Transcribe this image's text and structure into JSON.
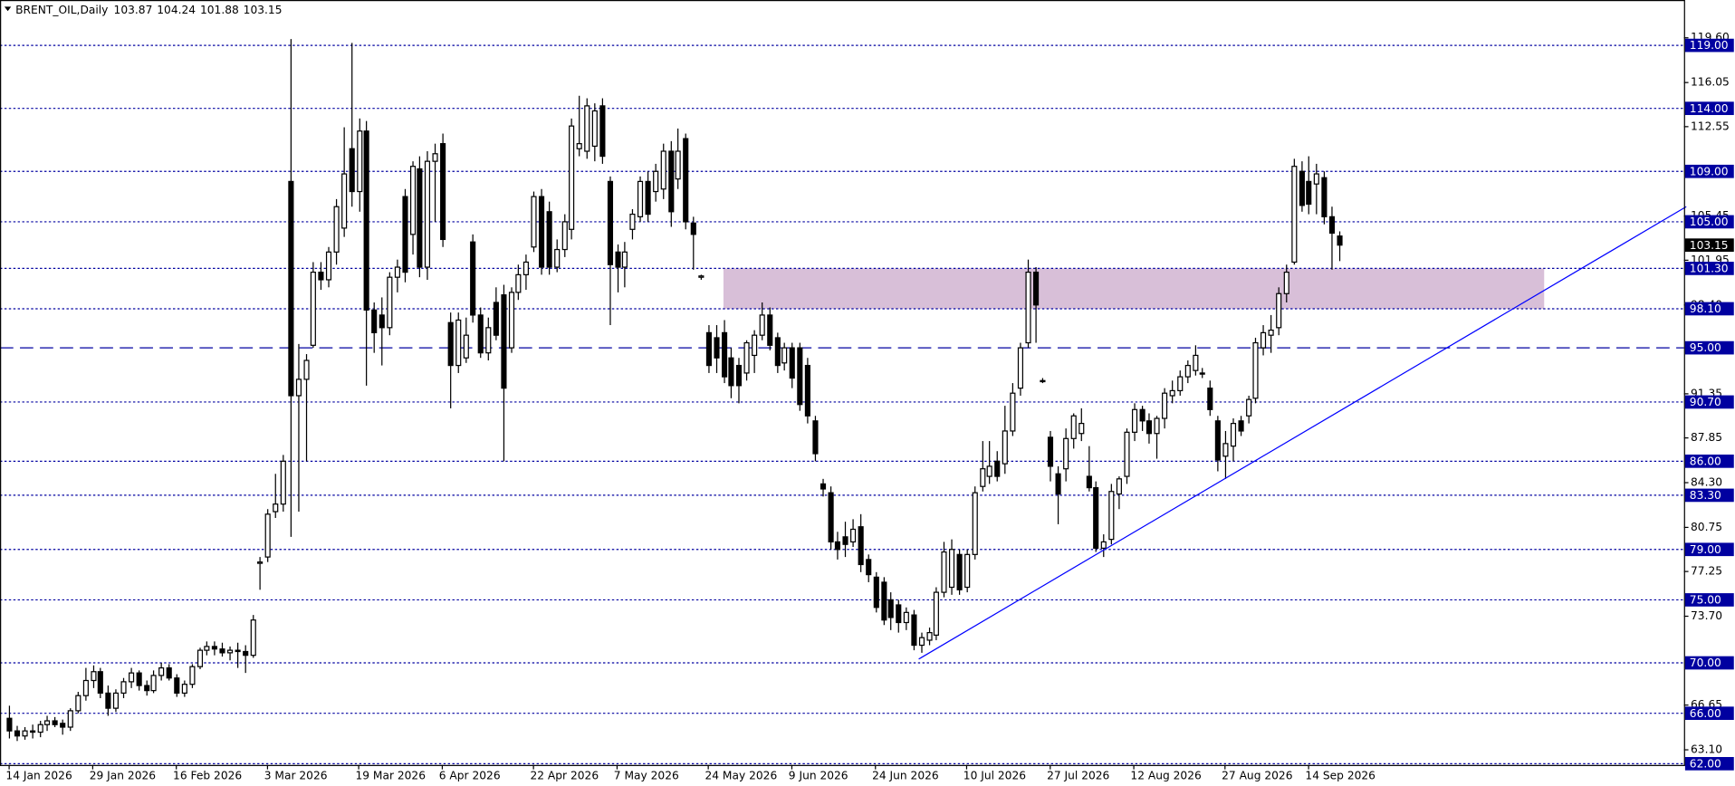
{
  "chart_data": {
    "type": "candlestick",
    "title": "BRENT_OIL,Daily",
    "categories": [
      "14 Jan 2026",
      null,
      null,
      null,
      null,
      null,
      null,
      null,
      null,
      null,
      null,
      "29 Jan 2026",
      null,
      null,
      null,
      null,
      null,
      null,
      null,
      null,
      null,
      null,
      "16 Feb 2026",
      null,
      null,
      null,
      null,
      null,
      null,
      null,
      null,
      null,
      null,
      null,
      "3 Mar 2026",
      null,
      null,
      null,
      null,
      null,
      null,
      null,
      null,
      null,
      null,
      null,
      "19 Mar 2026",
      null,
      null,
      null,
      null,
      null,
      null,
      null,
      null,
      null,
      null,
      "6 Apr 2026",
      null,
      null,
      null,
      null,
      null,
      null,
      null,
      null,
      null,
      null,
      null,
      "22 Apr 2026",
      null,
      null,
      null,
      null,
      null,
      null,
      null,
      null,
      null,
      null,
      "7 May 2026",
      null,
      null,
      null,
      null,
      null,
      null,
      null,
      null,
      null,
      null,
      null,
      "24 May 2026",
      null,
      null,
      null,
      null,
      null,
      null,
      null,
      null,
      null,
      null,
      "9 Jun 2026",
      null,
      null,
      null,
      null,
      null,
      null,
      null,
      null,
      null,
      null,
      "24 Jun 2026",
      null,
      null,
      null,
      null,
      null,
      null,
      null,
      null,
      null,
      null,
      null,
      "10 Jul 2026",
      null,
      null,
      null,
      null,
      null,
      null,
      null,
      null,
      null,
      null,
      "27 Jul 2026",
      null,
      null,
      null,
      null,
      null,
      null,
      null,
      null,
      null,
      null,
      "12 Aug 2026",
      null,
      null,
      null,
      null,
      null,
      null,
      null,
      null,
      null,
      null,
      null,
      "27 Aug 2026",
      null,
      null,
      null,
      null,
      null,
      null,
      null,
      null,
      null,
      null,
      "14 Sep 2026",
      null,
      null,
      null,
      null
    ],
    "ohlc": [
      [
        65.6,
        66.6,
        64.0,
        64.6
      ],
      [
        64.6,
        65.0,
        63.8,
        64.2
      ],
      [
        64.2,
        64.9,
        63.9,
        64.6
      ],
      [
        64.6,
        65.1,
        64.0,
        64.5
      ],
      [
        64.5,
        65.4,
        64.1,
        65.1
      ],
      [
        65.1,
        65.8,
        64.6,
        65.4
      ],
      [
        65.4,
        65.7,
        64.9,
        65.1
      ],
      [
        65.2,
        65.5,
        64.3,
        64.9
      ],
      [
        64.9,
        66.4,
        64.6,
        66.2
      ],
      [
        66.2,
        67.7,
        66.0,
        67.4
      ],
      [
        67.4,
        69.6,
        67.0,
        68.6
      ],
      [
        68.6,
        69.8,
        68.0,
        69.3
      ],
      [
        69.3,
        69.6,
        67.2,
        67.6
      ],
      [
        67.6,
        68.2,
        65.8,
        66.4
      ],
      [
        66.4,
        67.9,
        66.1,
        67.6
      ],
      [
        67.6,
        68.8,
        67.2,
        68.5
      ],
      [
        68.5,
        69.6,
        68.0,
        69.2
      ],
      [
        69.2,
        69.4,
        67.8,
        68.2
      ],
      [
        68.2,
        68.6,
        67.4,
        67.8
      ],
      [
        67.8,
        69.4,
        67.6,
        69.0
      ],
      [
        69.0,
        70.0,
        68.6,
        69.6
      ],
      [
        69.6,
        69.9,
        68.6,
        68.8
      ],
      [
        68.8,
        69.1,
        67.3,
        67.6
      ],
      [
        67.6,
        68.6,
        67.3,
        68.3
      ],
      [
        68.3,
        69.9,
        68.0,
        69.7
      ],
      [
        69.7,
        71.2,
        69.5,
        71.0
      ],
      [
        71.0,
        71.7,
        70.6,
        71.3
      ],
      [
        71.3,
        71.7,
        70.6,
        71.1
      ],
      [
        71.1,
        71.6,
        70.5,
        70.8
      ],
      [
        70.8,
        71.3,
        70.2,
        71.0
      ],
      [
        71.0,
        71.6,
        69.6,
        70.9
      ],
      [
        70.9,
        71.4,
        69.2,
        70.6
      ],
      [
        70.6,
        73.8,
        70.4,
        73.4
      ],
      [
        77.9,
        78.4,
        75.8,
        78.0
      ],
      [
        78.4,
        82.2,
        78.0,
        81.8
      ],
      [
        82.0,
        85.0,
        81.5,
        82.6
      ],
      [
        82.6,
        86.5,
        82.0,
        86.0
      ],
      [
        108.2,
        119.5,
        80.0,
        91.2
      ],
      [
        91.2,
        95.3,
        82.0,
        92.5
      ],
      [
        92.5,
        94.5,
        86.0,
        94.0
      ],
      [
        95.2,
        101.8,
        95.0,
        101.0
      ],
      [
        101.0,
        101.8,
        99.6,
        100.4
      ],
      [
        100.4,
        103.0,
        99.8,
        102.6
      ],
      [
        102.6,
        106.8,
        101.6,
        106.2
      ],
      [
        104.5,
        112.5,
        103.8,
        108.8
      ],
      [
        110.8,
        119.2,
        106.2,
        107.4
      ],
      [
        107.4,
        113.2,
        105.8,
        112.2
      ],
      [
        112.2,
        113.0,
        92.0,
        98.0
      ],
      [
        98.0,
        98.6,
        94.6,
        96.2
      ],
      [
        97.6,
        99.0,
        93.6,
        96.6
      ],
      [
        96.6,
        101.0,
        96.0,
        100.6
      ],
      [
        100.6,
        102.0,
        99.4,
        101.4
      ],
      [
        107.0,
        107.6,
        100.2,
        101.0
      ],
      [
        104.0,
        109.8,
        102.4,
        109.4
      ],
      [
        109.2,
        110.2,
        100.6,
        101.4
      ],
      [
        101.4,
        110.6,
        100.4,
        109.8
      ],
      [
        109.8,
        111.2,
        105.0,
        110.4
      ],
      [
        111.2,
        112.0,
        103.0,
        103.6
      ],
      [
        97.0,
        97.8,
        90.2,
        93.6
      ],
      [
        93.6,
        97.8,
        93.0,
        97.2
      ],
      [
        94.2,
        97.4,
        93.8,
        96.0
      ],
      [
        103.4,
        104.0,
        97.0,
        97.6
      ],
      [
        97.6,
        98.2,
        94.2,
        94.6
      ],
      [
        94.6,
        97.4,
        94.0,
        96.6
      ],
      [
        98.6,
        99.8,
        95.6,
        96.0
      ],
      [
        99.2,
        100.0,
        86.0,
        91.8
      ],
      [
        95.0,
        99.8,
        94.6,
        99.4
      ],
      [
        99.4,
        101.6,
        98.8,
        100.8
      ],
      [
        100.8,
        102.4,
        99.6,
        101.8
      ],
      [
        103.0,
        107.4,
        102.6,
        107.0
      ],
      [
        107.0,
        107.6,
        100.8,
        101.4
      ],
      [
        105.8,
        106.6,
        100.8,
        101.4
      ],
      [
        101.4,
        103.6,
        101.0,
        102.8
      ],
      [
        102.8,
        105.6,
        102.2,
        105.0
      ],
      [
        104.4,
        113.2,
        103.6,
        112.6
      ],
      [
        110.8,
        115.0,
        110.2,
        111.2
      ],
      [
        110.6,
        114.8,
        110.0,
        114.2
      ],
      [
        111.0,
        114.4,
        109.8,
        113.8
      ],
      [
        114.2,
        114.8,
        109.6,
        110.2
      ],
      [
        108.2,
        108.6,
        96.8,
        101.6
      ],
      [
        102.6,
        103.2,
        99.4,
        101.4
      ],
      [
        101.4,
        103.4,
        99.8,
        102.6
      ],
      [
        104.4,
        106.0,
        103.6,
        105.6
      ],
      [
        105.4,
        108.6,
        105.0,
        108.2
      ],
      [
        108.2,
        109.0,
        105.0,
        105.6
      ],
      [
        107.4,
        109.6,
        106.6,
        109.0
      ],
      [
        107.6,
        111.2,
        106.8,
        110.6
      ],
      [
        110.6,
        111.4,
        104.6,
        105.8
      ],
      [
        108.4,
        112.4,
        107.6,
        110.6
      ],
      [
        111.6,
        112.0,
        104.4,
        105.0
      ],
      [
        104.9,
        105.4,
        101.2,
        104.0
      ],
      [
        100.6,
        100.8,
        100.4,
        100.7
      ],
      [
        96.2,
        96.8,
        93.0,
        93.6
      ],
      [
        95.8,
        96.8,
        93.0,
        94.2
      ],
      [
        96.2,
        97.2,
        92.2,
        92.7
      ],
      [
        94.2,
        95.0,
        91.0,
        92.0
      ],
      [
        93.6,
        94.2,
        90.6,
        92.0
      ],
      [
        93.0,
        95.6,
        92.4,
        95.4
      ],
      [
        94.4,
        96.4,
        93.0,
        96.0
      ],
      [
        96.0,
        98.6,
        95.6,
        97.6
      ],
      [
        97.6,
        98.2,
        94.8,
        95.2
      ],
      [
        95.8,
        96.2,
        93.0,
        93.6
      ],
      [
        93.8,
        95.4,
        93.2,
        95.0
      ],
      [
        95.0,
        95.4,
        91.8,
        92.6
      ],
      [
        95.0,
        95.4,
        90.0,
        90.5
      ],
      [
        93.6,
        94.2,
        89.0,
        89.6
      ],
      [
        89.2,
        89.6,
        86.0,
        86.6
      ],
      [
        84.2,
        84.6,
        83.2,
        83.8
      ],
      [
        83.5,
        84.0,
        79.0,
        79.6
      ],
      [
        79.6,
        80.4,
        78.2,
        79.0
      ],
      [
        80.0,
        81.2,
        78.4,
        79.4
      ],
      [
        79.6,
        81.4,
        79.2,
        80.6
      ],
      [
        80.8,
        81.8,
        77.2,
        77.8
      ],
      [
        78.2,
        78.6,
        76.4,
        77.0
      ],
      [
        76.8,
        77.2,
        74.0,
        74.4
      ],
      [
        76.4,
        76.8,
        73.0,
        73.4
      ],
      [
        75.0,
        75.6,
        72.6,
        73.6
      ],
      [
        74.6,
        75.0,
        72.4,
        73.2
      ],
      [
        73.2,
        74.4,
        72.6,
        74.0
      ],
      [
        73.8,
        74.2,
        71.0,
        71.4
      ],
      [
        71.4,
        72.4,
        70.8,
        72.0
      ],
      [
        71.8,
        72.8,
        71.4,
        72.4
      ],
      [
        72.2,
        76.0,
        71.8,
        75.6
      ],
      [
        75.6,
        79.6,
        75.2,
        78.8
      ],
      [
        76.0,
        79.8,
        75.4,
        79.0
      ],
      [
        78.6,
        79.0,
        75.4,
        75.8
      ],
      [
        76.0,
        79.0,
        75.6,
        78.6
      ],
      [
        78.6,
        84.0,
        78.2,
        83.5
      ],
      [
        84.0,
        87.6,
        83.6,
        85.4
      ],
      [
        84.8,
        87.6,
        84.2,
        85.6
      ],
      [
        86.0,
        86.8,
        84.4,
        84.8
      ],
      [
        85.8,
        90.4,
        85.0,
        88.4
      ],
      [
        88.4,
        92.2,
        88.0,
        91.4
      ],
      [
        91.8,
        95.4,
        91.2,
        95.0
      ],
      [
        95.4,
        102.0,
        95.0,
        101.0
      ],
      [
        101.0,
        101.4,
        95.4,
        98.4
      ],
      [
        92.4,
        92.6,
        92.2,
        92.4
      ],
      [
        87.9,
        88.4,
        84.4,
        85.6
      ],
      [
        85.0,
        85.6,
        81.0,
        83.4
      ],
      [
        85.4,
        88.6,
        84.4,
        87.8
      ],
      [
        87.8,
        89.8,
        87.0,
        89.6
      ],
      [
        88.2,
        90.2,
        87.6,
        89.0
      ],
      [
        84.8,
        87.2,
        83.6,
        83.9
      ],
      [
        83.9,
        84.4,
        78.8,
        79.1
      ],
      [
        79.1,
        80.2,
        78.4,
        79.6
      ],
      [
        79.8,
        84.2,
        79.4,
        83.6
      ],
      [
        83.4,
        84.8,
        82.2,
        84.6
      ],
      [
        84.8,
        88.6,
        84.2,
        88.3
      ],
      [
        88.3,
        90.6,
        87.6,
        90.1
      ],
      [
        90.1,
        90.4,
        88.4,
        89.2
      ],
      [
        89.2,
        89.8,
        87.4,
        88.2
      ],
      [
        88.2,
        89.6,
        86.2,
        89.4
      ],
      [
        89.4,
        91.8,
        88.6,
        91.4
      ],
      [
        91.2,
        92.4,
        90.6,
        91.6
      ],
      [
        91.6,
        93.2,
        91.2,
        92.7
      ],
      [
        92.7,
        94.0,
        92.2,
        93.6
      ],
      [
        93.2,
        95.2,
        92.8,
        94.4
      ],
      [
        93.0,
        93.4,
        92.6,
        93.0
      ],
      [
        91.8,
        92.4,
        89.6,
        90.1
      ],
      [
        89.2,
        89.6,
        85.2,
        86.1
      ],
      [
        86.4,
        88.4,
        84.6,
        87.4
      ],
      [
        87.2,
        89.4,
        86.0,
        89.0
      ],
      [
        89.2,
        89.6,
        88.0,
        88.4
      ],
      [
        89.6,
        91.2,
        89.0,
        90.9
      ],
      [
        91.0,
        95.8,
        90.6,
        95.4
      ],
      [
        95.0,
        96.8,
        94.4,
        96.2
      ],
      [
        96.0,
        97.6,
        94.6,
        96.4
      ],
      [
        96.6,
        99.8,
        96.0,
        99.3
      ],
      [
        99.3,
        101.6,
        98.6,
        101.0
      ],
      [
        101.8,
        110.0,
        101.6,
        109.4
      ],
      [
        109.0,
        109.8,
        105.8,
        106.3
      ],
      [
        108.2,
        110.2,
        105.6,
        106.4
      ],
      [
        108.0,
        109.6,
        105.6,
        108.8
      ],
      [
        108.5,
        109.0,
        104.8,
        105.4
      ],
      [
        105.4,
        106.2,
        101.2,
        104.1
      ],
      [
        103.87,
        104.24,
        101.88,
        103.15
      ]
    ],
    "bull_color": "#ffffff",
    "bear_color": "#000000",
    "xlim": [
      -1.2,
      220.4
    ],
    "ylim": [
      61.9,
      122.6
    ],
    "yticks": [
      {
        "value": 119.6,
        "label": "119.60"
      },
      {
        "value": 116.05,
        "label": "116.05"
      },
      {
        "value": 112.55,
        "label": "112.55"
      },
      {
        "value": 105.45,
        "label": "105.45"
      },
      {
        "value": 101.95,
        "label": "101.95"
      },
      {
        "value": 98.4,
        "label": "98.40"
      },
      {
        "value": 91.35,
        "label": "91.35"
      },
      {
        "value": 87.85,
        "label": "87.85"
      },
      {
        "value": 84.3,
        "label": "84.30"
      },
      {
        "value": 80.75,
        "label": "80.75"
      },
      {
        "value": 77.25,
        "label": "77.25"
      },
      {
        "value": 73.7,
        "label": "73.70"
      },
      {
        "value": 66.65,
        "label": "66.65"
      },
      {
        "value": 63.1,
        "label": "63.10"
      }
    ],
    "levels": [
      {
        "value": 119,
        "label": "119.00",
        "style": "dot"
      },
      {
        "value": 114,
        "label": "114.00",
        "style": "dot"
      },
      {
        "value": 109,
        "label": "109.00",
        "style": "dot"
      },
      {
        "value": 105,
        "label": "105.00",
        "style": "dot"
      },
      {
        "value": 101.3,
        "label": "101.30",
        "style": "dot"
      },
      {
        "value": 98.1,
        "label": "98.10",
        "style": "dot"
      },
      {
        "value": 95,
        "label": "95.00",
        "style": "dash"
      },
      {
        "value": 90.7,
        "label": "90.70",
        "style": "dot"
      },
      {
        "value": 86,
        "label": "86.00",
        "style": "dot"
      },
      {
        "value": 83.3,
        "label": "83.30",
        "style": "dot"
      },
      {
        "value": 79,
        "label": "79.00",
        "style": "dot"
      },
      {
        "value": 75,
        "label": "75.00",
        "style": "dot"
      },
      {
        "value": 70,
        "label": "70.00",
        "style": "dot"
      },
      {
        "value": 66,
        "label": "66.00",
        "style": "dot"
      },
      {
        "value": 62,
        "label": "62.00",
        "style": "dot"
      }
    ],
    "level_color": "#0000a0",
    "zone": {
      "x": [
        94,
        202
      ],
      "y": [
        98.1,
        101.3
      ],
      "color": "#d8bfd8"
    },
    "trendline": {
      "x": [
        119.7,
        220.7
      ],
      "y": [
        70.3,
        106.2
      ],
      "color": "#0000ff"
    }
  }
}
